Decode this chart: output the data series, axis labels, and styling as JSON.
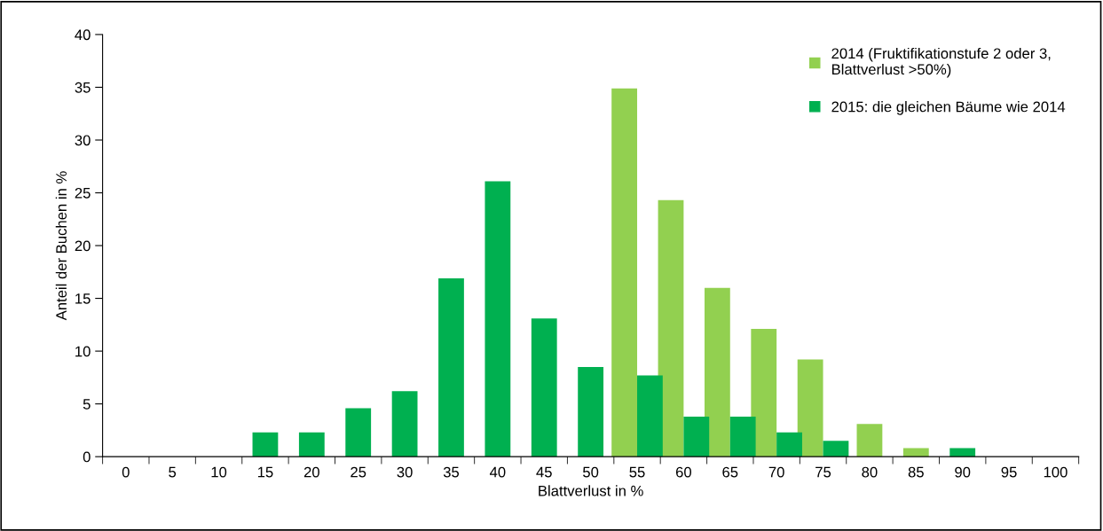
{
  "chart_data": {
    "type": "bar",
    "xlabel": "Blattverlust in %",
    "ylabel": "Anteil der Buchen in %",
    "categories": [
      "0",
      "5",
      "10",
      "15",
      "20",
      "25",
      "30",
      "35",
      "40",
      "45",
      "50",
      "55",
      "60",
      "65",
      "70",
      "75",
      "80",
      "85",
      "90",
      "95",
      "100"
    ],
    "series": [
      {
        "name": "2014 (Fruktifikationstufe 2 oder 3,\nBlattverlust >50%)",
        "color": "#92d050",
        "values": [
          null,
          null,
          null,
          null,
          null,
          null,
          null,
          null,
          null,
          null,
          null,
          34.9,
          24.3,
          16.0,
          12.1,
          9.2,
          3.1,
          0.8,
          null,
          null,
          null
        ]
      },
      {
        "name": "2015: die gleichen Bäume wie 2014",
        "color": "#00b050",
        "values": [
          null,
          null,
          null,
          2.3,
          2.3,
          4.6,
          6.2,
          16.9,
          26.1,
          13.1,
          8.5,
          7.7,
          3.8,
          3.8,
          2.3,
          1.5,
          null,
          null,
          0.8,
          null,
          null
        ]
      }
    ],
    "ylim": [
      0,
      40
    ],
    "yticks": [
      0,
      5,
      10,
      15,
      20,
      25,
      30,
      35,
      40
    ],
    "grid": false,
    "legend": "top right"
  }
}
